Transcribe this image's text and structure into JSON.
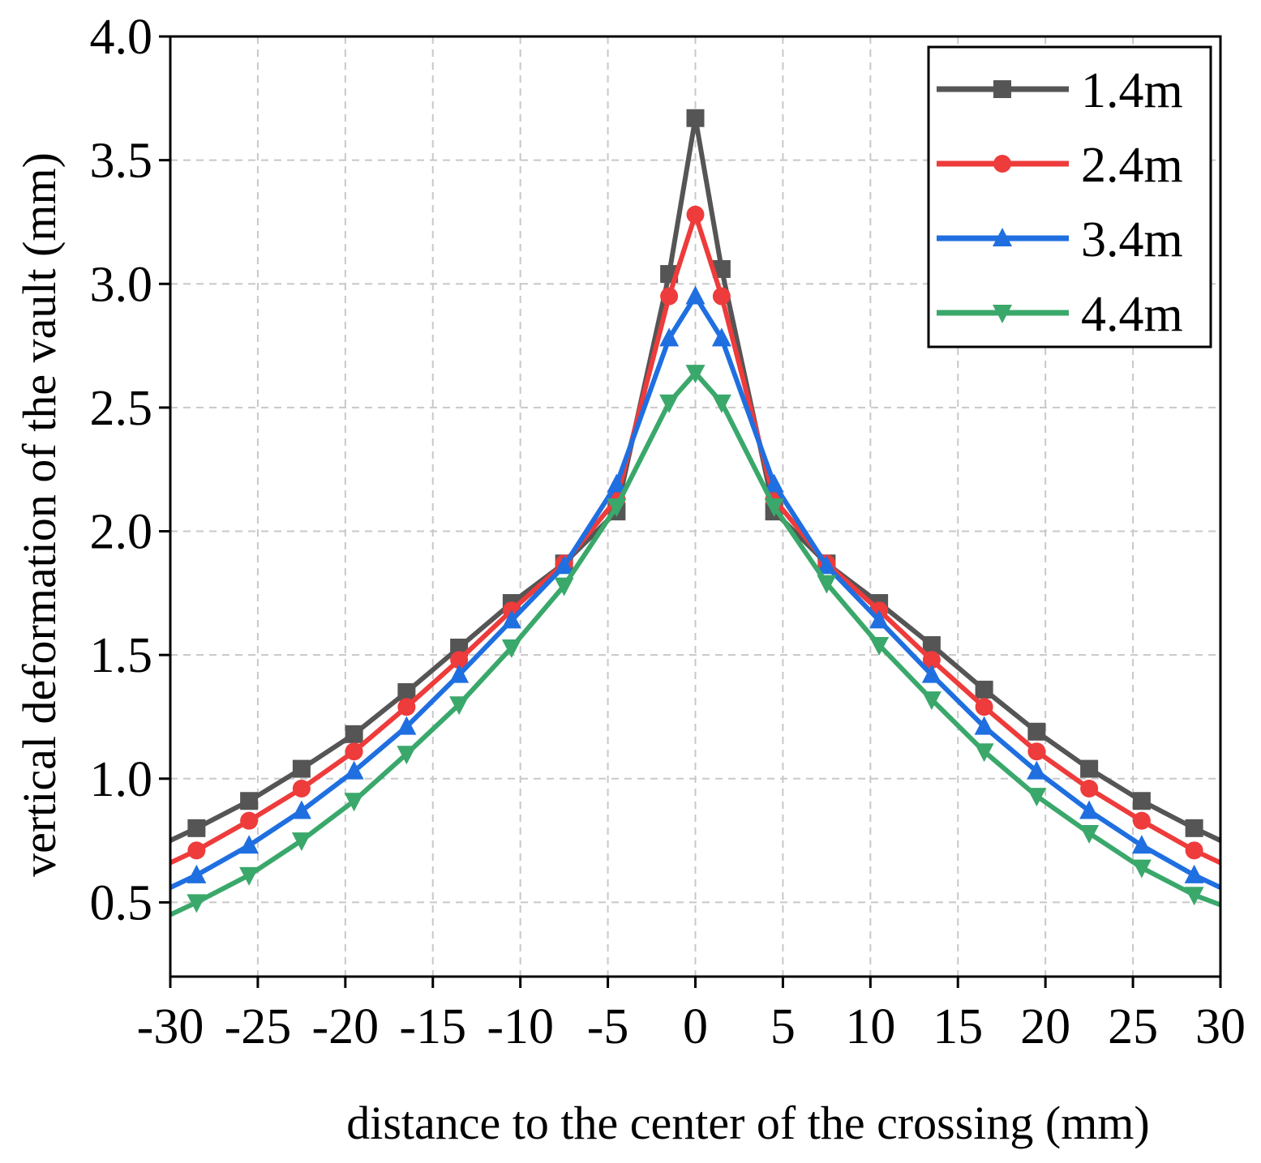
{
  "chart_data": {
    "type": "line",
    "title": "",
    "xlabel": "distance to the center of the crossing (mm)",
    "ylabel": "vertical deformation of the vault (mm)",
    "xlim": [
      -30,
      30
    ],
    "ylim": [
      0.2,
      4.0
    ],
    "xticks": [
      -30,
      -25,
      -20,
      -15,
      -10,
      -5,
      0,
      5,
      10,
      15,
      20,
      25,
      30
    ],
    "xtick_labels": [
      "-30",
      "-25",
      "-20",
      "-15",
      "-10",
      "-5",
      "0",
      "5",
      "10",
      "15",
      "20",
      "25",
      "30"
    ],
    "yticks": [
      0.5,
      1.0,
      1.5,
      2.0,
      2.5,
      3.0,
      3.5,
      4.0
    ],
    "ytick_labels": [
      "0.5",
      "1.0",
      "1.5",
      "2.0",
      "2.5",
      "3.0",
      "3.5",
      "4.0"
    ],
    "grid": true,
    "legend_position": "top-right",
    "series": [
      {
        "name": "1.4m",
        "color": "#555555",
        "marker": "square",
        "x": [
          -30,
          -28.5,
          -25.5,
          -22.5,
          -19.5,
          -16.5,
          -13.5,
          -10.5,
          -7.5,
          -4.5,
          -1.5,
          0,
          1.5,
          4.5,
          7.5,
          10.5,
          13.5,
          16.5,
          19.5,
          22.5,
          25.5,
          28.5,
          30
        ],
        "y": [
          0.75,
          0.8,
          0.91,
          1.04,
          1.18,
          1.35,
          1.53,
          1.71,
          1.87,
          2.08,
          3.04,
          3.67,
          3.06,
          2.08,
          1.87,
          1.71,
          1.54,
          1.36,
          1.19,
          1.04,
          0.91,
          0.8,
          0.75
        ]
      },
      {
        "name": "2.4m",
        "color": "#ee3b3b",
        "marker": "circle",
        "x": [
          -30,
          -28.5,
          -25.5,
          -22.5,
          -19.5,
          -16.5,
          -13.5,
          -10.5,
          -7.5,
          -4.5,
          -1.5,
          0,
          1.5,
          4.5,
          7.5,
          10.5,
          13.5,
          16.5,
          19.5,
          22.5,
          25.5,
          28.5,
          30
        ],
        "y": [
          0.66,
          0.71,
          0.83,
          0.96,
          1.11,
          1.29,
          1.48,
          1.68,
          1.87,
          2.13,
          2.95,
          3.28,
          2.95,
          2.13,
          1.87,
          1.68,
          1.48,
          1.29,
          1.11,
          0.96,
          0.83,
          0.71,
          0.66
        ]
      },
      {
        "name": "3.4m",
        "color": "#1f6fe0",
        "marker": "triangle-up",
        "x": [
          -30,
          -28.5,
          -25.5,
          -22.5,
          -19.5,
          -16.5,
          -13.5,
          -10.5,
          -7.5,
          -4.5,
          -1.5,
          0,
          1.5,
          4.5,
          7.5,
          10.5,
          13.5,
          16.5,
          19.5,
          22.5,
          25.5,
          28.5,
          30
        ],
        "y": [
          0.56,
          0.61,
          0.73,
          0.87,
          1.03,
          1.21,
          1.42,
          1.64,
          1.86,
          2.19,
          2.78,
          2.95,
          2.78,
          2.19,
          1.86,
          1.64,
          1.42,
          1.21,
          1.03,
          0.87,
          0.73,
          0.61,
          0.56
        ]
      },
      {
        "name": "4.4m",
        "color": "#3aa86b",
        "marker": "triangle-down",
        "x": [
          -30,
          -28.5,
          -25.5,
          -22.5,
          -19.5,
          -16.5,
          -13.5,
          -10.5,
          -7.5,
          -4.5,
          -1.5,
          0,
          1.5,
          4.5,
          7.5,
          10.5,
          13.5,
          16.5,
          19.5,
          22.5,
          25.5,
          28.5,
          30
        ],
        "y": [
          0.45,
          0.5,
          0.61,
          0.75,
          0.91,
          1.1,
          1.3,
          1.53,
          1.78,
          2.1,
          2.52,
          2.64,
          2.52,
          2.1,
          1.79,
          1.54,
          1.32,
          1.11,
          0.93,
          0.78,
          0.64,
          0.53,
          0.49
        ]
      }
    ]
  }
}
